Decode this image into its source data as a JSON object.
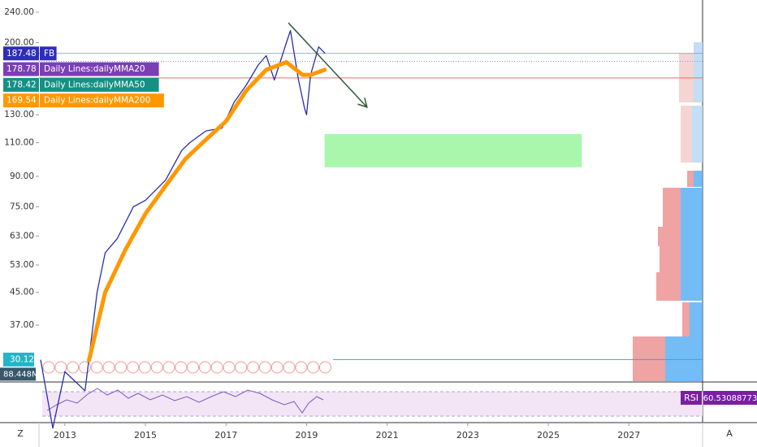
{
  "chart_data": {
    "type": "line",
    "log_scale": true,
    "xlim": [
      2011.39,
      2028.83
    ],
    "ylim": [
      26.6,
      258
    ],
    "xticks": [
      2013,
      2015,
      2017,
      2019,
      2021,
      2023,
      2025,
      2027
    ],
    "yticks": [
      {
        "value": 240,
        "label": "240.00"
      },
      {
        "value": 200,
        "label": "200.00"
      },
      {
        "value": 130,
        "label": "130.00"
      },
      {
        "value": 110,
        "label": "110.00"
      },
      {
        "value": 90,
        "label": "90.00"
      },
      {
        "value": 75,
        "label": "75.00"
      },
      {
        "value": 63,
        "label": "63.00"
      },
      {
        "value": 53,
        "label": "53.00"
      },
      {
        "value": 45,
        "label": "45.00"
      },
      {
        "value": 37,
        "label": "37.00"
      }
    ],
    "series": [
      {
        "name": "FB",
        "color": "#2a2ea8",
        "x": [
          2012.4,
          2012.7,
          2013.0,
          2013.5,
          2013.8,
          2014.0,
          2014.3,
          2014.7,
          2015.0,
          2015.5,
          2015.9,
          2016.1,
          2016.5,
          2016.9,
          2017.2,
          2017.5,
          2017.8,
          2018.0,
          2018.2,
          2018.5,
          2018.6,
          2018.8,
          2018.95,
          2019.0,
          2019.1,
          2019.3,
          2019.45
        ],
        "values": [
          30,
          20,
          28,
          25,
          45,
          57,
          62,
          75,
          78,
          88,
          105,
          110,
          118,
          120,
          140,
          155,
          175,
          185,
          160,
          200,
          215,
          160,
          135,
          130,
          165,
          195,
          188
        ]
      },
      {
        "name": "Daily Lines:dailyMMA200",
        "color": "#ff9800",
        "x": [
          2013.6,
          2014.0,
          2014.5,
          2015.0,
          2015.5,
          2016.0,
          2016.5,
          2017.0,
          2017.5,
          2018.0,
          2018.5,
          2018.9,
          2019.1,
          2019.45
        ],
        "values": [
          30,
          45,
          58,
          72,
          85,
          100,
          112,
          125,
          150,
          170,
          178,
          165,
          165,
          170
        ]
      }
    ],
    "price_tags": [
      {
        "value": 187.48,
        "label": "187.48",
        "name": "FB",
        "color": "#2e2eb8"
      },
      {
        "value": 178.78,
        "label": "178.78",
        "name": "Daily Lines:dailyMMA20",
        "color": "#7b3fb5"
      },
      {
        "value": 178.42,
        "label": "178.42",
        "name": "Daily Lines:dailyMMA50",
        "color": "#159084"
      },
      {
        "value": 169.54,
        "label": "169.54",
        "name": "Daily Lines:dailyMMA200",
        "color": "#ff9800"
      }
    ],
    "volume_tag": {
      "value": 30.12,
      "label": "30.12",
      "color": "#22b5c6"
    },
    "volume_label": "88.448M",
    "level": {
      "value": 162,
      "color": "#f26c6c"
    },
    "trendline": {
      "x": [
        2018.55,
        2020.5
      ],
      "y": [
        225,
        136
      ],
      "color": "#2f5a3a"
    },
    "zone": {
      "x": [
        2019.45,
        2025.83
      ],
      "y": [
        115.8,
        95
      ],
      "color": "#a8f7ad"
    },
    "rsi": {
      "name": "RSI",
      "label": "60.53088773"
    },
    "corner_left": "Z",
    "corner_right": "A"
  }
}
